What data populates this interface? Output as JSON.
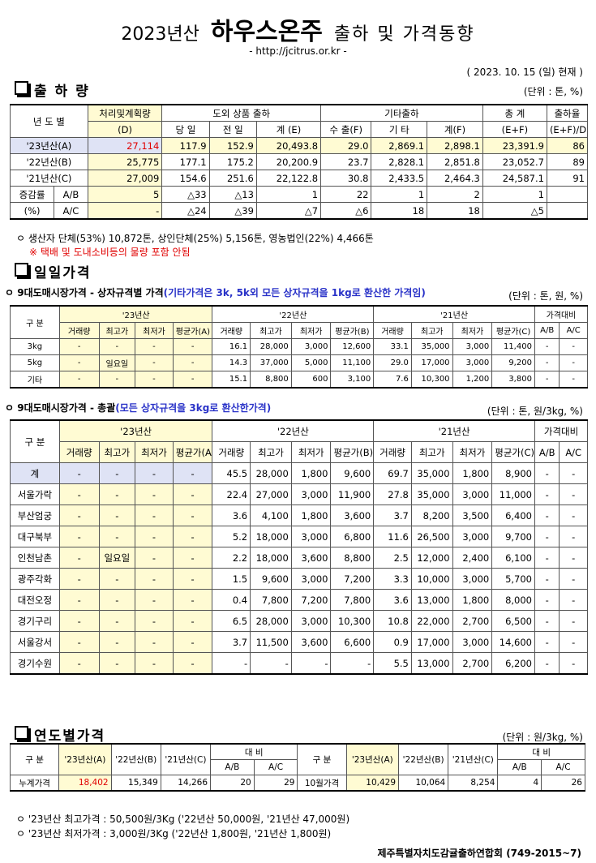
{
  "header": {
    "year": "2023년산",
    "main": "하우스온주",
    "rest": "출하 및 가격동향",
    "url": "- http://jcitrus.or.kr -",
    "date": "( 2023. 10. 15 (일) 현재 )"
  },
  "shipment": {
    "title": "출 하 량",
    "unit": "(단위 : 톤, %)",
    "header": [
      "년 도 별",
      "처리및계획량",
      "도외 상품 출하",
      "기타출하",
      "총 계",
      "출하율",
      "(D)",
      "당 일",
      "전 일",
      "계 (E)",
      "수 출(F)",
      "기 타",
      "계(F)",
      "(E+F)",
      "(E+F)/D"
    ],
    "rows": [
      [
        "'23년산(A)",
        "27,114",
        "117.9",
        "152.9",
        "20,493.8",
        "29.0",
        "2,869.1",
        "2,898.1",
        "23,391.9",
        "86"
      ],
      [
        "'22년산(B)",
        "25,775",
        "177.1",
        "175.2",
        "20,200.9",
        "23.7",
        "2,828.1",
        "2,851.8",
        "23,052.7",
        "89"
      ],
      [
        "'21년산(C)",
        "27,009",
        "154.6",
        "251.6",
        "22,122.8",
        "30.8",
        "2,433.5",
        "2,464.3",
        "24,587.1",
        "91"
      ],
      [
        "증감률",
        "A/B",
        "5",
        "△33",
        "△13",
        "1",
        "22",
        "1",
        "2",
        "1",
        null
      ],
      [
        "(%)",
        "A/C",
        "-",
        "△24",
        "△39",
        "△7",
        "△6",
        "18",
        "18",
        "△5",
        null
      ]
    ],
    "notes": [
      "ㅇ 생산자 단체(53%) 10,872톤, 상인단체(25%) 5,156톤, 영농법인(22%) 4,466톤",
      "※ 택배 및 도내소비등의 물량 포함 안됨"
    ]
  },
  "daily": {
    "title": "일일가격",
    "box": {
      "subtitle": "ㅇ 9대도매시장가격 - 상자규격별 가격",
      "note": "(기타가격은 3k, 5k외 모든 상자규격을 1kg로 환산한 가격임)",
      "unit": "(단위 : 톤, 원, %)",
      "header": [
        "구 분",
        "'23년산",
        "'22년산",
        "'21년산",
        "가격대비",
        "거래량",
        "최고가",
        "최저가",
        "평균가(A)",
        "거래량",
        "최고가",
        "최저가",
        "평균가(B)",
        "거래량",
        "최고가",
        "최저가",
        "평균가(C)",
        "A/B",
        "A/C"
      ],
      "rows": [
        [
          "3kg",
          "-",
          "-",
          "-",
          "-",
          "16.1",
          "28,000",
          "3,000",
          "12,600",
          "33.1",
          "35,000",
          "3,000",
          "11,400",
          "-",
          "-"
        ],
        [
          "5kg",
          "-",
          "일요일",
          "-",
          "-",
          "14.3",
          "37,000",
          "5,000",
          "11,100",
          "29.0",
          "17,000",
          "3,000",
          "9,200",
          "-",
          "-"
        ],
        [
          "기타",
          "-",
          "-",
          "-",
          "-",
          "15.1",
          "8,800",
          "600",
          "3,100",
          "7.6",
          "10,300",
          "1,200",
          "3,800",
          "-",
          "-"
        ]
      ]
    },
    "total": {
      "subtitle": "ㅇ 9대도매시장가격 - 총괄",
      "note": "(모든 상자규격을 3kg로 환산한가격)",
      "unit": "(단위 : 톤, 원/3kg, %)",
      "header": [
        "구 분",
        "'23년산",
        "'22년산",
        "'21년산",
        "가격대비",
        "거래량",
        "최고가",
        "최저가",
        "평균가(A)",
        "거래량",
        "최고가",
        "최저가",
        "평균가(B)",
        "거래량",
        "최고가",
        "최저가",
        "평균가(C)",
        "A/B",
        "A/C"
      ],
      "rows": [
        [
          "계",
          "-",
          "-",
          "-",
          "-",
          "45.5",
          "28,000",
          "1,800",
          "9,600",
          "69.7",
          "35,000",
          "1,800",
          "8,900",
          "-",
          "-"
        ],
        [
          "서울가락",
          "-",
          "-",
          "-",
          "-",
          "22.4",
          "27,000",
          "3,000",
          "11,900",
          "27.8",
          "35,000",
          "3,000",
          "11,000",
          "-",
          "-"
        ],
        [
          "부산엄궁",
          "-",
          "-",
          "-",
          "-",
          "3.6",
          "4,100",
          "1,800",
          "3,600",
          "3.7",
          "8,200",
          "3,500",
          "6,400",
          "-",
          "-"
        ],
        [
          "대구북부",
          "-",
          "-",
          "-",
          "-",
          "5.2",
          "18,000",
          "3,000",
          "6,800",
          "11.6",
          "26,500",
          "3,000",
          "9,700",
          "-",
          "-"
        ],
        [
          "인천남촌",
          "-",
          "일요일",
          "-",
          "-",
          "2.2",
          "18,000",
          "3,600",
          "8,800",
          "2.5",
          "12,000",
          "2,400",
          "6,100",
          "-",
          "-"
        ],
        [
          "광주각화",
          "-",
          "-",
          "-",
          "-",
          "1.5",
          "9,600",
          "3,000",
          "7,200",
          "3.3",
          "10,000",
          "3,000",
          "5,700",
          "-",
          "-"
        ],
        [
          "대전오정",
          "-",
          "-",
          "-",
          "-",
          "0.4",
          "7,800",
          "7,200",
          "7,800",
          "3.6",
          "13,000",
          "1,800",
          "8,000",
          "-",
          "-"
        ],
        [
          "경기구리",
          "-",
          "-",
          "-",
          "-",
          "6.5",
          "28,000",
          "3,000",
          "10,300",
          "10.8",
          "22,000",
          "2,700",
          "6,500",
          "-",
          "-"
        ],
        [
          "서울강서",
          "-",
          "-",
          "-",
          "-",
          "3.7",
          "11,500",
          "3,600",
          "6,600",
          "0.9",
          "17,000",
          "3,000",
          "14,600",
          "-",
          "-"
        ],
        [
          "경기수원",
          "-",
          "-",
          "-",
          "-",
          "-",
          "-",
          "-",
          "-",
          "5.5",
          "13,000",
          "2,700",
          "6,200",
          "-",
          "-"
        ]
      ]
    }
  },
  "yearly": {
    "title": "연도별가격",
    "unit": "(단위 : 원/3kg, %)",
    "header": [
      "구 분",
      "'23년산(A)",
      "'22년산(B)",
      "'21년산(C)",
      "대 비",
      "구 분",
      "'23년산(A)",
      "'22년산(B)",
      "'21년산(C)",
      "대 비",
      "A/B",
      "A/C",
      "A/B",
      "A/C"
    ],
    "rows": [
      [
        "누계가격",
        "18,402",
        "15,349",
        "14,266",
        "20",
        "29",
        "10월가격",
        "10,429",
        "10,064",
        "8,254",
        "4",
        "26"
      ]
    ],
    "notes": [
      "ㅇ '23년산 최고가격 : 50,500원/3Kg ('22년산 50,000원, '21년산 47,000원)",
      "ㅇ '23년산 최저가격 :  3,000원/3Kg ('22년산 1,800원, '21년산 1,800원)"
    ],
    "footer": "제주특별자치도감귤출하연합회 (749-2015~7)"
  }
}
